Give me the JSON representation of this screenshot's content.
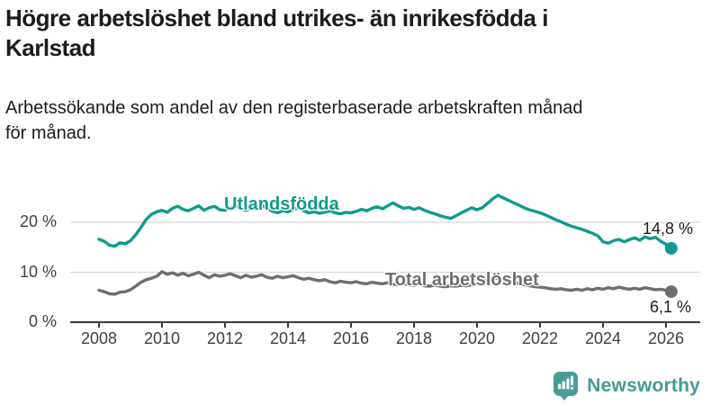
{
  "header": {
    "title_lines": [
      "Högre arbetslöshet bland utrikes- än inrikesfödda i",
      "Karlstad"
    ],
    "subtitle_lines": [
      "Arbetssökande som andel av den registerbaserade arbetskraften månad",
      "för månad."
    ]
  },
  "chart_data": {
    "type": "line",
    "title": "Högre arbetslöshet bland utrikes- än inrikesfödda i Karlstad",
    "subtitle": "Arbetssökande som andel av den registerbaserade arbetskraften månad för månad.",
    "unit": "%",
    "x_start": 2008,
    "x_step_years": 0.166667,
    "xlim": [
      2007.1,
      2027.1
    ],
    "ylim": [
      0,
      28
    ],
    "grid": "horizontal",
    "x_ticks": [
      "2008",
      "2010",
      "2012",
      "2014",
      "2016",
      "2018",
      "2020",
      "2022",
      "2024",
      "2026"
    ],
    "y_ticks": [
      "0 %",
      "10 %",
      "20 %"
    ],
    "series": [
      {
        "name": "Utlandsfödda",
        "color": "#0f9b8d",
        "end_label": "14,8 %",
        "end_value": 14.8,
        "values": [
          16.6,
          16.2,
          15.4,
          15.2,
          15.9,
          15.7,
          16.3,
          17.5,
          19.0,
          20.6,
          21.6,
          22.1,
          22.4,
          22.0,
          22.8,
          23.2,
          22.6,
          22.3,
          22.8,
          23.3,
          22.4,
          22.9,
          23.2,
          22.5,
          22.4,
          22.9,
          23.3,
          22.7,
          22.4,
          22.8,
          23.0,
          23.4,
          22.8,
          22.2,
          21.9,
          22.3,
          22.1,
          22.6,
          22.9,
          22.3,
          21.9,
          22.1,
          21.8,
          22.0,
          22.3,
          21.9,
          21.7,
          22.0,
          21.9,
          22.2,
          22.6,
          22.3,
          22.8,
          23.1,
          22.7,
          23.3,
          23.9,
          23.3,
          22.8,
          23.0,
          22.6,
          22.9,
          22.4,
          22.0,
          21.7,
          21.3,
          21.0,
          20.8,
          21.3,
          21.9,
          22.4,
          22.9,
          22.5,
          22.9,
          23.8,
          24.7,
          25.4,
          24.9,
          24.4,
          23.9,
          23.4,
          22.9,
          22.5,
          22.2,
          21.9,
          21.5,
          21.0,
          20.5,
          20.1,
          19.6,
          19.2,
          18.9,
          18.6,
          18.2,
          17.8,
          17.3,
          16.1,
          15.8,
          16.3,
          16.6,
          16.1,
          16.5,
          16.9,
          16.4,
          17.1,
          16.7,
          17.0,
          16.2,
          15.6,
          14.8
        ]
      },
      {
        "name": "Total arbetslöshet",
        "color": "#6e6e72",
        "end_label": "6,1 %",
        "end_value": 6.1,
        "values": [
          6.4,
          6.1,
          5.7,
          5.6,
          6.0,
          6.1,
          6.5,
          7.2,
          8.0,
          8.5,
          8.8,
          9.2,
          10.1,
          9.6,
          9.9,
          9.4,
          9.8,
          9.3,
          9.6,
          10.0,
          9.4,
          8.9,
          9.5,
          9.2,
          9.4,
          9.7,
          9.3,
          8.9,
          9.4,
          9.0,
          9.2,
          9.5,
          9.0,
          8.8,
          9.2,
          8.9,
          9.1,
          9.3,
          8.9,
          8.6,
          8.8,
          8.5,
          8.3,
          8.5,
          8.1,
          7.9,
          8.2,
          8.0,
          7.9,
          8.1,
          7.8,
          7.7,
          8.0,
          7.8,
          7.7,
          7.9,
          7.6,
          7.5,
          7.7,
          7.5,
          7.4,
          7.6,
          7.3,
          7.2,
          7.4,
          7.2,
          7.1,
          7.3,
          7.2,
          7.4,
          7.3,
          7.5,
          7.6,
          8.0,
          8.6,
          8.9,
          8.7,
          8.4,
          8.2,
          8.0,
          7.7,
          7.5,
          7.3,
          7.1,
          7.0,
          6.9,
          6.7,
          6.6,
          6.7,
          6.5,
          6.4,
          6.6,
          6.4,
          6.7,
          6.5,
          6.8,
          6.6,
          6.9,
          6.7,
          7.0,
          6.8,
          6.6,
          6.8,
          6.6,
          6.9,
          6.7,
          6.5,
          6.6,
          6.4,
          6.1
        ]
      }
    ]
  },
  "style": {
    "grid_color": "#d8d8d8",
    "axis_color": "#3c3c3c"
  },
  "footer": {
    "brand": "Newsworthy",
    "brand_color": "#459a94"
  }
}
